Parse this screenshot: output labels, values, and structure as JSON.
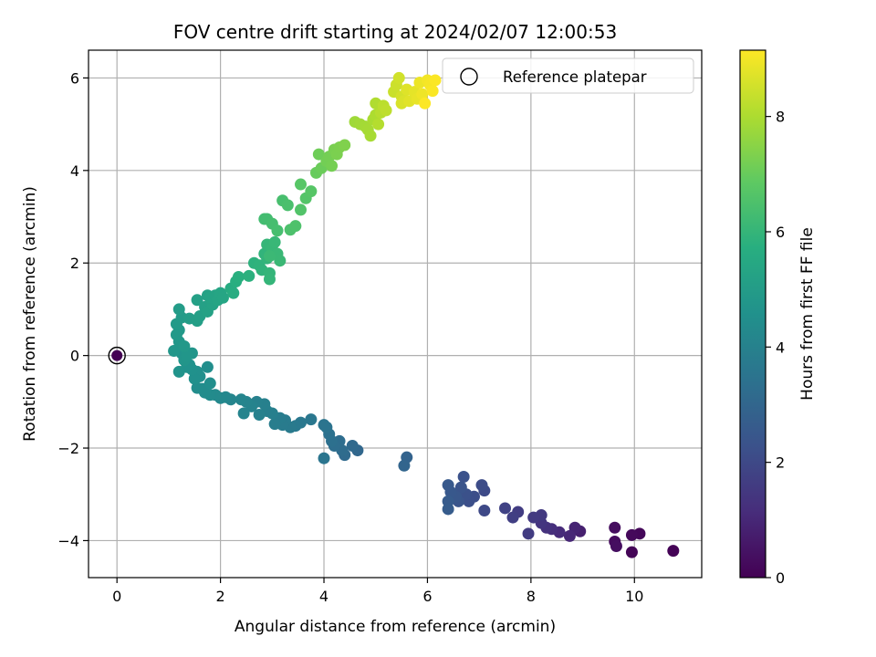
{
  "chart_data": {
    "type": "scatter",
    "title": "FOV centre drift starting at 2024/02/07 12:00:53",
    "xlabel": "Angular distance from reference (arcmin)",
    "ylabel": "Rotation from reference (arcmin)",
    "xlim": [
      -0.55,
      11.3
    ],
    "ylim": [
      -4.8,
      6.6
    ],
    "xticks": [
      0,
      2,
      4,
      6,
      8,
      10
    ],
    "yticks": [
      -4,
      -2,
      0,
      2,
      4,
      6
    ],
    "grid": true,
    "legend": {
      "placement": "top-right",
      "entries": [
        "Reference platepar"
      ]
    },
    "colorbar": {
      "label": "Hours from first FF file",
      "range": [
        0,
        9.15
      ],
      "ticks": [
        0,
        2,
        4,
        6,
        8
      ],
      "colormap": "viridis"
    },
    "reference_point": {
      "x": 0,
      "y": 0,
      "hours": 0
    },
    "series": [
      {
        "points": [
          [
            10.75,
            -4.22,
            0.05
          ],
          [
            9.95,
            -4.25,
            0.1
          ],
          [
            10.1,
            -3.85,
            0.15
          ],
          [
            9.95,
            -3.88,
            0.2
          ],
          [
            9.62,
            -4.02,
            0.25
          ],
          [
            9.62,
            -3.72,
            0.3
          ],
          [
            9.65,
            -4.12,
            0.35
          ],
          [
            8.95,
            -3.8,
            0.8
          ],
          [
            8.85,
            -3.72,
            0.9
          ],
          [
            8.75,
            -3.9,
            1.0
          ],
          [
            8.55,
            -3.82,
            1.1
          ],
          [
            8.4,
            -3.75,
            1.2
          ],
          [
            8.3,
            -3.72,
            1.3
          ],
          [
            8.2,
            -3.62,
            1.4
          ],
          [
            8.2,
            -3.45,
            1.5
          ],
          [
            8.05,
            -3.5,
            1.55
          ],
          [
            7.95,
            -3.85,
            1.6
          ],
          [
            7.75,
            -3.38,
            1.65
          ],
          [
            7.65,
            -3.5,
            1.7
          ],
          [
            7.5,
            -3.3,
            1.8
          ],
          [
            7.1,
            -3.35,
            2.0
          ],
          [
            7.1,
            -2.92,
            2.05
          ],
          [
            7.05,
            -2.8,
            2.1
          ],
          [
            6.9,
            -3.05,
            2.15
          ],
          [
            6.8,
            -3.15,
            2.2
          ],
          [
            6.75,
            -3.0,
            2.25
          ],
          [
            6.7,
            -2.62,
            2.3
          ],
          [
            6.65,
            -2.85,
            2.35
          ],
          [
            6.6,
            -3.15,
            2.4
          ],
          [
            6.55,
            -3.05,
            2.45
          ],
          [
            6.45,
            -2.95,
            2.5
          ],
          [
            6.4,
            -2.8,
            2.55
          ],
          [
            6.4,
            -3.15,
            2.6
          ],
          [
            6.4,
            -3.32,
            2.65
          ],
          [
            5.6,
            -2.2,
            2.9
          ],
          [
            5.55,
            -2.38,
            2.95
          ],
          [
            4.65,
            -2.05,
            3.05
          ],
          [
            4.55,
            -1.95,
            3.1
          ],
          [
            4.4,
            -2.15,
            3.15
          ],
          [
            4.35,
            -2.05,
            3.2
          ],
          [
            4.3,
            -1.85,
            3.25
          ],
          [
            4.2,
            -1.95,
            3.3
          ],
          [
            4.15,
            -1.85,
            3.35
          ],
          [
            4.1,
            -1.7,
            3.4
          ],
          [
            4.05,
            -1.55,
            3.45
          ],
          [
            4.0,
            -1.5,
            3.5
          ],
          [
            4.0,
            -2.22,
            3.55
          ],
          [
            3.75,
            -1.38,
            3.6
          ],
          [
            3.55,
            -1.45,
            3.65
          ],
          [
            3.45,
            -1.52,
            3.7
          ],
          [
            3.35,
            -1.55,
            3.72
          ],
          [
            3.25,
            -1.4,
            3.75
          ],
          [
            3.2,
            -1.5,
            3.78
          ],
          [
            3.15,
            -1.35,
            3.8
          ],
          [
            3.05,
            -1.48,
            3.85
          ],
          [
            3.0,
            -1.25,
            3.9
          ],
          [
            2.9,
            -1.2,
            3.92
          ],
          [
            2.85,
            -1.05,
            3.95
          ],
          [
            2.75,
            -1.28,
            3.97
          ],
          [
            2.7,
            -1.0,
            4.0
          ],
          [
            2.6,
            -1.1,
            4.05
          ],
          [
            2.5,
            -1.0,
            4.08
          ],
          [
            2.45,
            -1.25,
            4.1
          ],
          [
            2.4,
            -0.95,
            4.12
          ],
          [
            2.2,
            -0.95,
            4.15
          ],
          [
            2.1,
            -0.9,
            4.2
          ],
          [
            2.0,
            -0.92,
            4.25
          ],
          [
            1.9,
            -0.85,
            4.3
          ],
          [
            1.8,
            -0.85,
            4.35
          ],
          [
            1.7,
            -0.8,
            4.38
          ],
          [
            1.65,
            -0.72,
            4.4
          ],
          [
            1.55,
            -0.7,
            4.42
          ],
          [
            1.8,
            -0.6,
            4.45
          ],
          [
            1.75,
            -0.25,
            4.48
          ],
          [
            1.6,
            -0.45,
            4.5
          ],
          [
            1.55,
            -0.35,
            4.52
          ],
          [
            1.5,
            -0.5,
            4.55
          ],
          [
            1.45,
            -0.3,
            4.58
          ],
          [
            1.4,
            -0.2,
            4.6
          ],
          [
            1.35,
            -0.25,
            4.62
          ],
          [
            1.2,
            -0.35,
            4.65
          ],
          [
            1.25,
            0.05,
            4.7
          ],
          [
            1.3,
            -0.1,
            4.72
          ],
          [
            1.45,
            0.05,
            4.75
          ],
          [
            1.35,
            0.0,
            4.78
          ],
          [
            1.1,
            0.1,
            4.8
          ],
          [
            1.2,
            0.3,
            4.82
          ],
          [
            1.3,
            0.2,
            4.85
          ],
          [
            1.15,
            0.45,
            4.88
          ],
          [
            1.2,
            0.55,
            4.9
          ],
          [
            1.15,
            0.68,
            4.92
          ],
          [
            1.25,
            0.82,
            4.95
          ],
          [
            1.2,
            1.0,
            5.0
          ],
          [
            1.4,
            0.8,
            5.05
          ],
          [
            1.55,
            0.75,
            5.1
          ],
          [
            1.6,
            0.85,
            5.12
          ],
          [
            1.55,
            1.2,
            5.15
          ],
          [
            1.7,
            1.05,
            5.18
          ],
          [
            1.75,
            0.95,
            5.2
          ],
          [
            1.75,
            1.3,
            5.22
          ],
          [
            1.85,
            1.1,
            5.25
          ],
          [
            1.8,
            1.25,
            5.28
          ],
          [
            1.9,
            1.3,
            5.3
          ],
          [
            1.95,
            1.2,
            5.32
          ],
          [
            2.0,
            1.35,
            5.35
          ],
          [
            2.05,
            1.25,
            5.38
          ],
          [
            2.2,
            1.45,
            5.6
          ],
          [
            2.25,
            1.35,
            5.65
          ],
          [
            2.3,
            1.6,
            5.7
          ],
          [
            2.35,
            1.7,
            5.75
          ],
          [
            2.55,
            1.72,
            5.8
          ],
          [
            2.65,
            2.0,
            5.85
          ],
          [
            2.75,
            1.95,
            5.88
          ],
          [
            2.8,
            1.85,
            5.9
          ],
          [
            2.85,
            2.2,
            5.92
          ],
          [
            2.9,
            2.1,
            5.95
          ],
          [
            2.95,
            1.78,
            5.97
          ],
          [
            2.95,
            1.65,
            6.0
          ],
          [
            2.9,
            2.4,
            6.02
          ],
          [
            3.0,
            2.3,
            6.05
          ],
          [
            3.05,
            2.45,
            6.08
          ],
          [
            3.1,
            2.2,
            6.1
          ],
          [
            3.15,
            2.05,
            6.12
          ],
          [
            2.95,
            2.15,
            6.14
          ],
          [
            2.85,
            2.95,
            6.3
          ],
          [
            2.9,
            2.95,
            6.32
          ],
          [
            3.0,
            2.85,
            6.35
          ],
          [
            3.1,
            2.7,
            6.38
          ],
          [
            3.2,
            3.35,
            6.4
          ],
          [
            3.3,
            3.25,
            6.45
          ],
          [
            3.35,
            2.72,
            6.5
          ],
          [
            3.45,
            2.8,
            6.52
          ],
          [
            3.55,
            3.15,
            6.6
          ],
          [
            3.65,
            3.4,
            6.65
          ],
          [
            3.75,
            3.55,
            6.7
          ],
          [
            3.55,
            3.7,
            6.72
          ],
          [
            3.85,
            3.95,
            7.0
          ],
          [
            3.95,
            4.05,
            7.05
          ],
          [
            3.9,
            4.35,
            7.1
          ],
          [
            4.05,
            4.2,
            7.15
          ],
          [
            4.1,
            4.3,
            7.18
          ],
          [
            4.15,
            4.1,
            7.2
          ],
          [
            4.2,
            4.45,
            7.25
          ],
          [
            4.25,
            4.35,
            7.28
          ],
          [
            4.3,
            4.5,
            7.3
          ],
          [
            4.4,
            4.55,
            7.35
          ],
          [
            4.6,
            5.05,
            7.8
          ],
          [
            4.7,
            5.0,
            7.85
          ],
          [
            4.8,
            4.95,
            7.88
          ],
          [
            4.85,
            4.88,
            7.9
          ],
          [
            4.9,
            4.75,
            7.92
          ],
          [
            4.95,
            5.1,
            7.95
          ],
          [
            5.0,
            5.2,
            8.0
          ],
          [
            5.0,
            5.45,
            8.05
          ],
          [
            5.05,
            5.0,
            8.1
          ],
          [
            5.1,
            5.25,
            8.15
          ],
          [
            5.15,
            5.4,
            8.2
          ],
          [
            5.2,
            5.3,
            8.25
          ],
          [
            5.35,
            5.7,
            8.4
          ],
          [
            5.4,
            5.85,
            8.45
          ],
          [
            5.45,
            6.0,
            8.5
          ],
          [
            5.5,
            5.6,
            8.55
          ],
          [
            5.5,
            5.45,
            8.6
          ],
          [
            5.55,
            5.5,
            8.65
          ],
          [
            5.6,
            5.75,
            8.7
          ],
          [
            5.65,
            5.5,
            8.75
          ],
          [
            5.75,
            5.7,
            8.8
          ],
          [
            5.8,
            5.55,
            8.85
          ],
          [
            5.85,
            5.9,
            8.9
          ],
          [
            5.9,
            5.65,
            8.95
          ],
          [
            6.0,
            5.95,
            9.0
          ],
          [
            6.05,
            5.85,
            9.05
          ],
          [
            6.1,
            5.72,
            9.1
          ],
          [
            6.15,
            5.95,
            9.12
          ],
          [
            5.95,
            5.45,
            9.14
          ]
        ]
      }
    ]
  }
}
